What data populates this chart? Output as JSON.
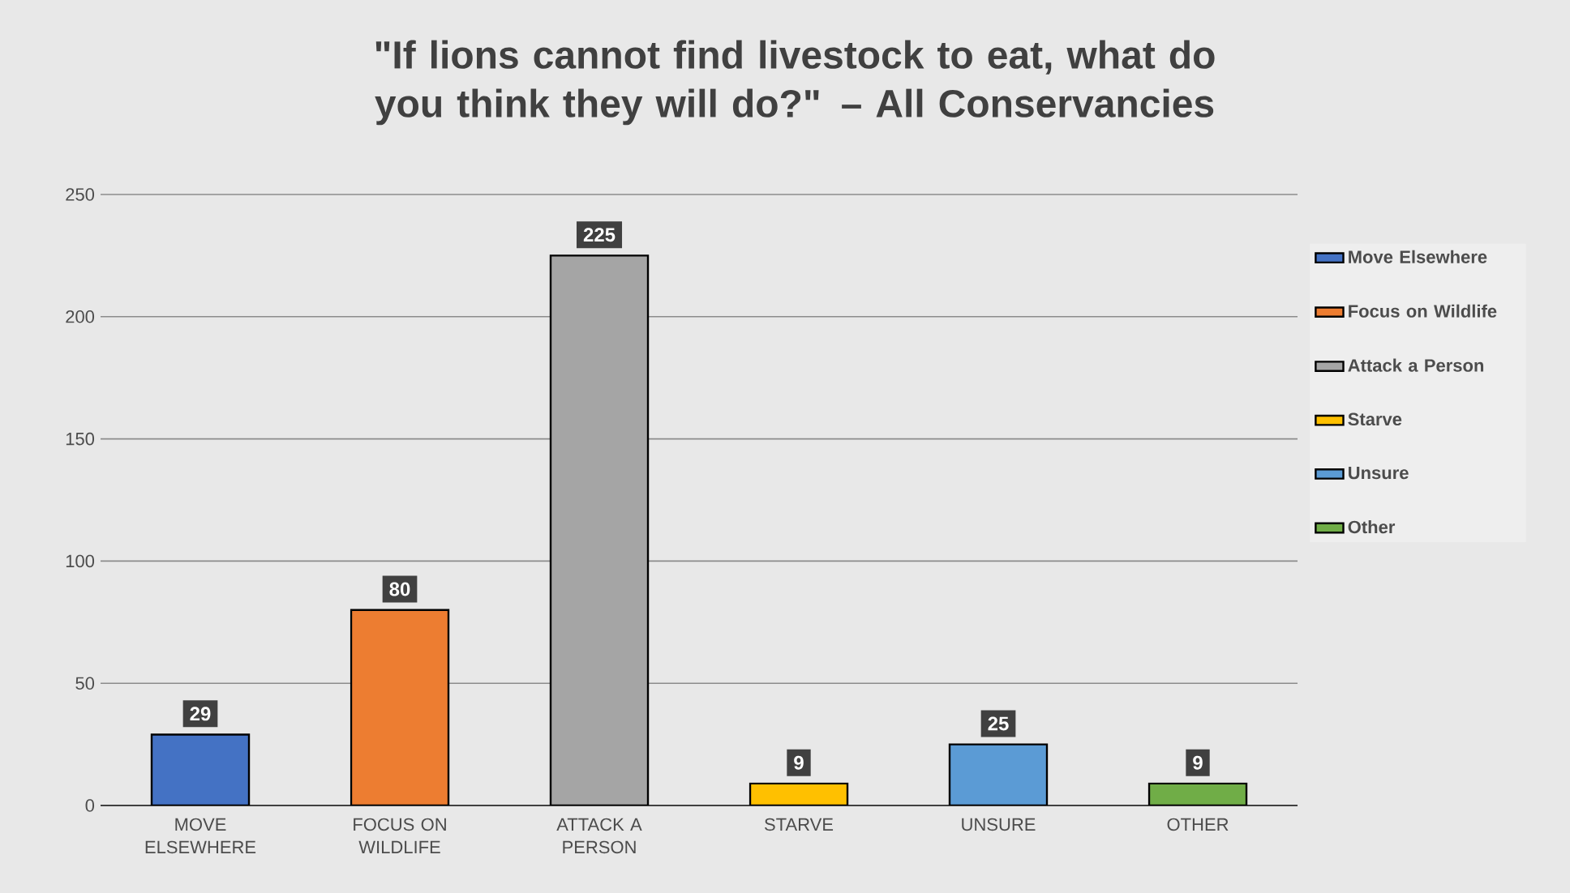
{
  "chart_data": {
    "type": "bar",
    "title": "\"If lions cannot find livestock to eat, what do you think they will do?\" – All Conservancies",
    "categories": [
      "MOVE ELSEWHERE",
      "FOCUS ON WILDLIFE",
      "ATTACK A PERSON",
      "STARVE",
      "UNSURE",
      "OTHER"
    ],
    "series": [
      {
        "name": "Move Elsewhere",
        "color": "#4472c4",
        "values": [
          29,
          null,
          null,
          null,
          null,
          null
        ]
      },
      {
        "name": "Focus on Wildlife",
        "color": "#ed7d31",
        "values": [
          null,
          80,
          null,
          null,
          null,
          null
        ]
      },
      {
        "name": "Attack a Person",
        "color": "#a5a5a5",
        "values": [
          null,
          null,
          225,
          null,
          null,
          null
        ]
      },
      {
        "name": "Starve",
        "color": "#ffc000",
        "values": [
          null,
          null,
          null,
          9,
          null,
          null
        ]
      },
      {
        "name": "Unsure",
        "color": "#5b9bd5",
        "values": [
          null,
          null,
          null,
          null,
          25,
          null
        ]
      },
      {
        "name": "Other",
        "color": "#70ad47",
        "values": [
          null,
          null,
          null,
          null,
          null,
          9
        ]
      }
    ],
    "ylim": [
      0,
      250
    ],
    "yticks": [
      0,
      50,
      100,
      150,
      200,
      250
    ],
    "grid": "y",
    "legend": "right",
    "data_labels": true
  }
}
